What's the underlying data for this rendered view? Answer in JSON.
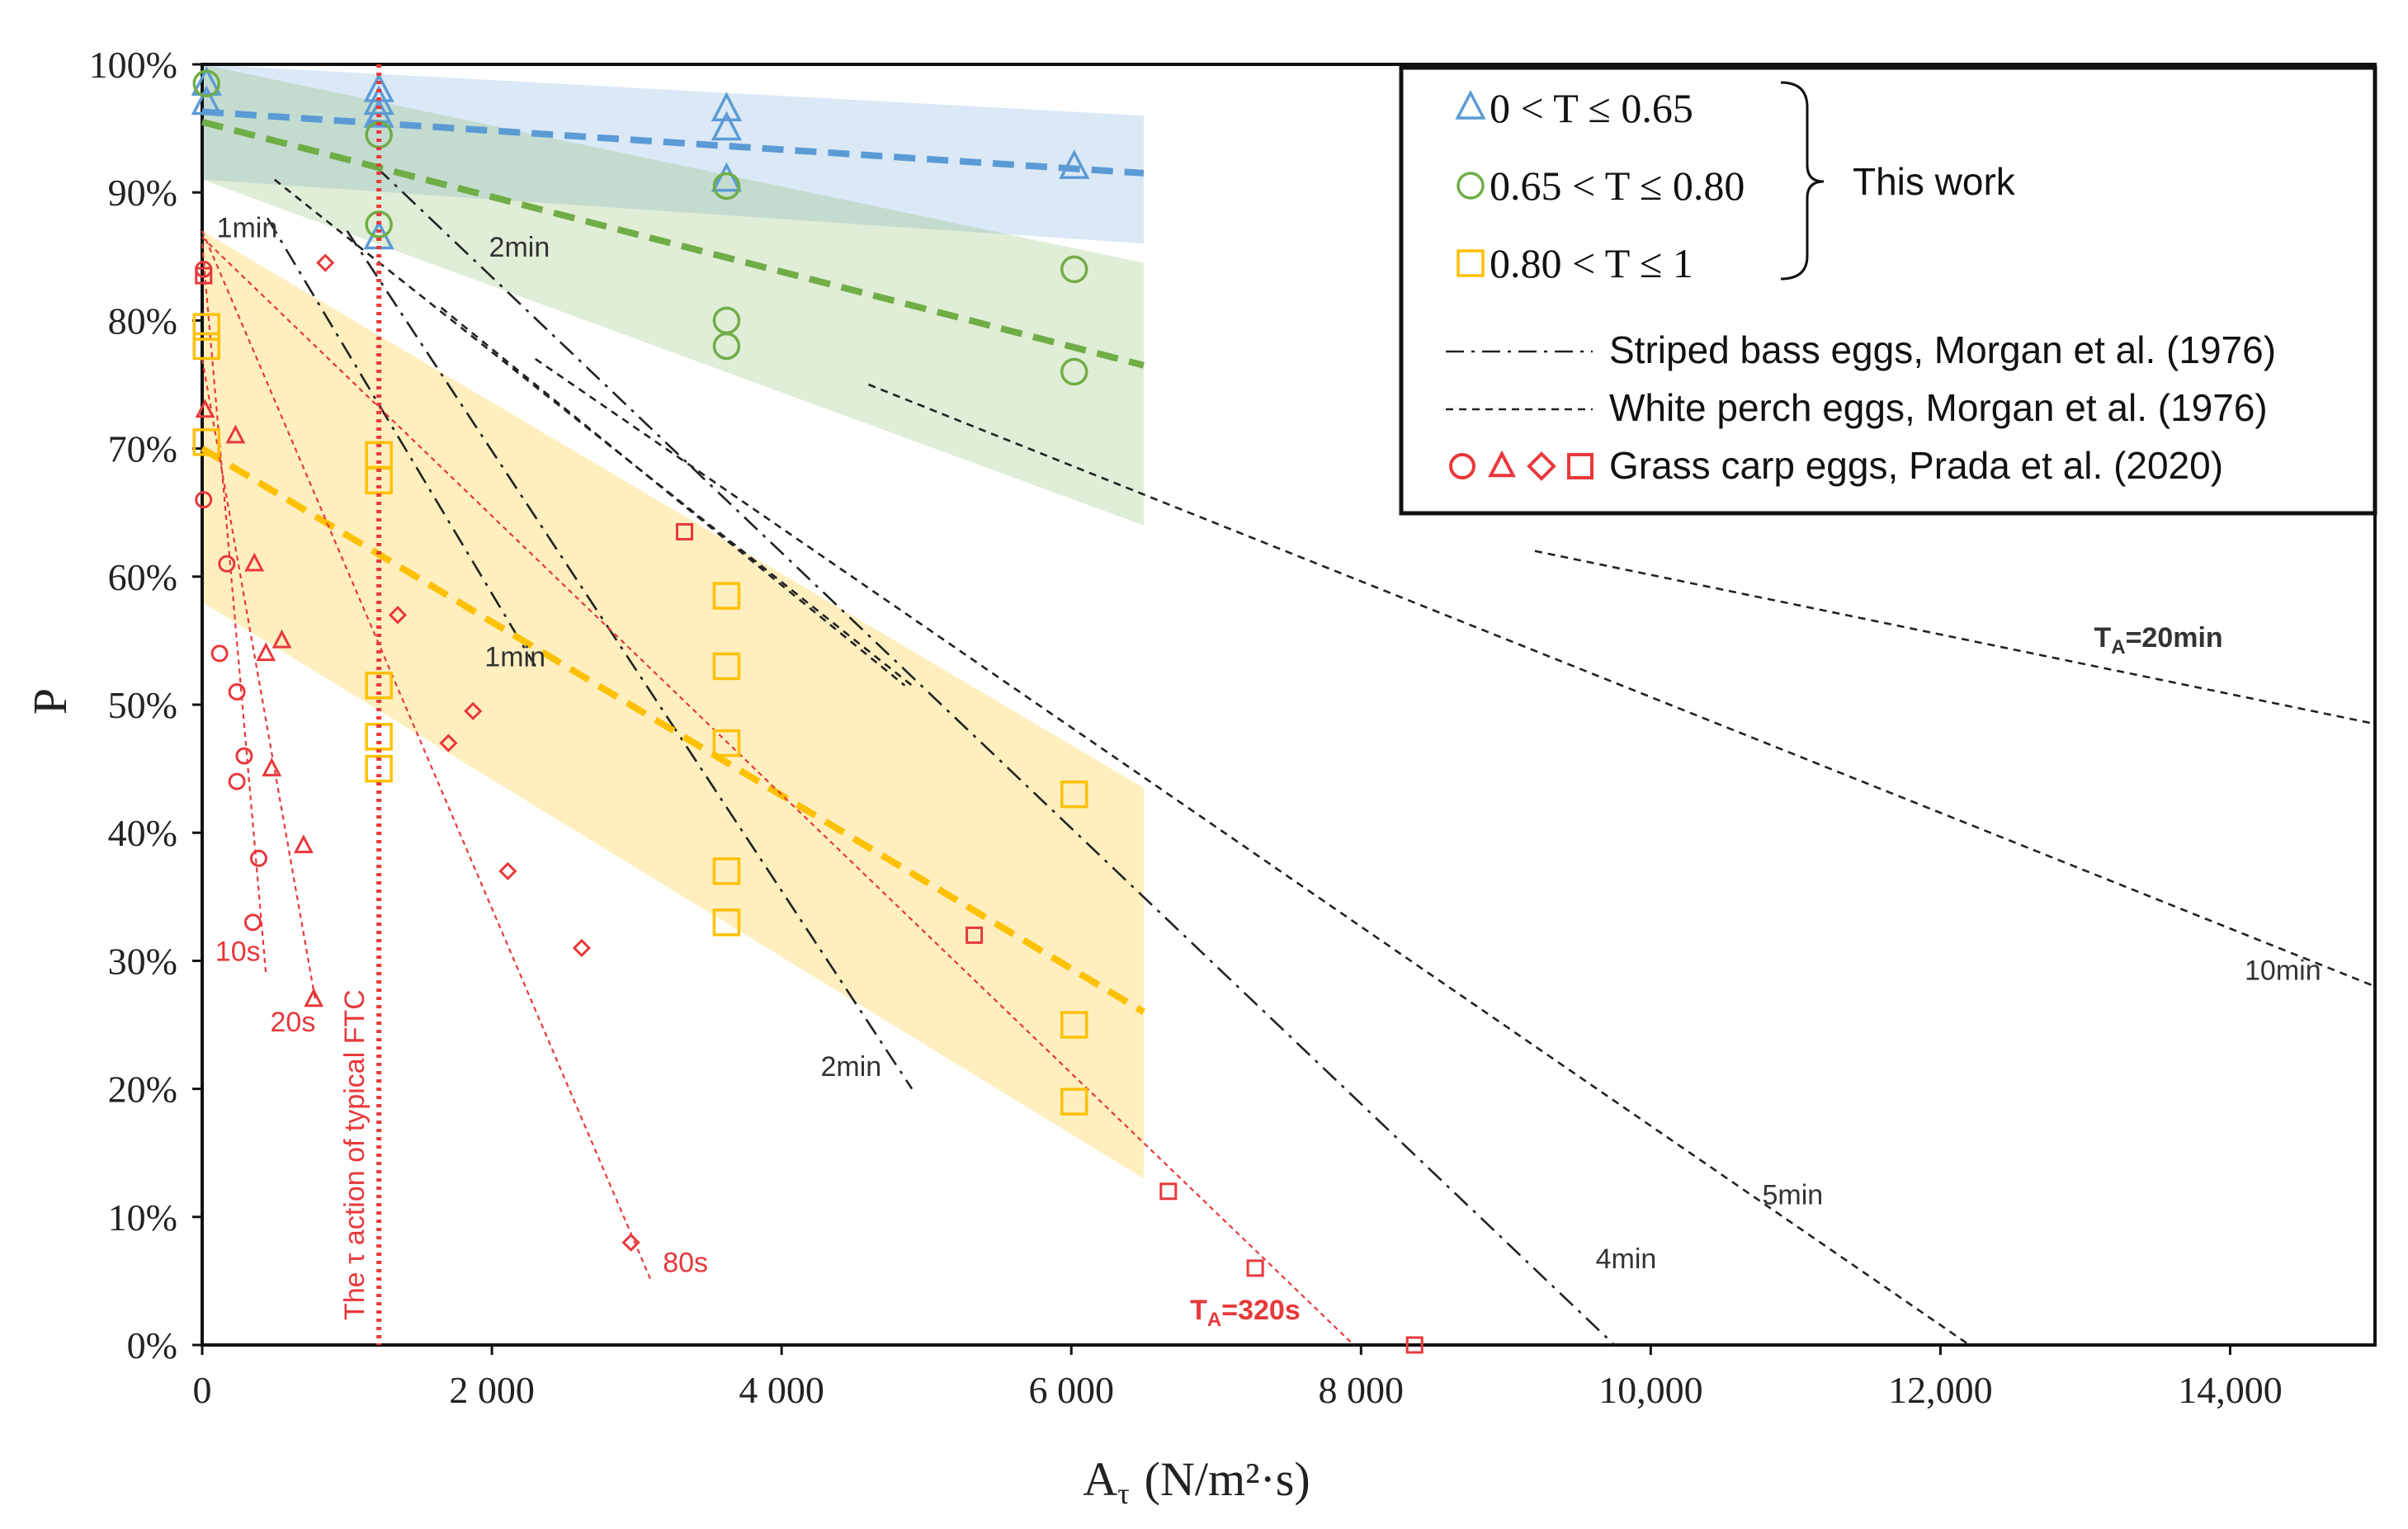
{
  "chart_data": {
    "type": "scatter",
    "title": "",
    "xlabel": "A",
    "xlabel_sub": "τ",
    "xlabel_units": "(N/m²·s)",
    "ylabel": "P",
    "xlim": [
      0,
      15000
    ],
    "ylim": [
      0,
      100
    ],
    "x_ticks": [
      {
        "value": 0,
        "label": "0"
      },
      {
        "value": 2000,
        "label": "2 000"
      },
      {
        "value": 4000,
        "label": "4 000"
      },
      {
        "value": 6000,
        "label": "6 000"
      },
      {
        "value": 8000,
        "label": "8 000"
      },
      {
        "value": 10000,
        "label": "10,000"
      },
      {
        "value": 12000,
        "label": "12,000"
      },
      {
        "value": 14000,
        "label": "14,000"
      }
    ],
    "y_ticks": [
      {
        "value": 0,
        "label": "0%"
      },
      {
        "value": 10,
        "label": "10%"
      },
      {
        "value": 20,
        "label": "20%"
      },
      {
        "value": 30,
        "label": "30%"
      },
      {
        "value": 40,
        "label": "40%"
      },
      {
        "value": 50,
        "label": "50%"
      },
      {
        "value": 60,
        "label": "60%"
      },
      {
        "value": 70,
        "label": "70%"
      },
      {
        "value": 80,
        "label": "80%"
      },
      {
        "value": 90,
        "label": "90%"
      },
      {
        "value": 100,
        "label": "100%"
      }
    ],
    "colors": {
      "blue": "#5b9bd5",
      "green": "#70ad47",
      "yellow": "#ffc000",
      "red": "#e8383b",
      "black": "#222222"
    },
    "bands": [
      {
        "name": "band-blue",
        "color": "#5b9bd5",
        "opacity": 0.22,
        "upper": [
          [
            0,
            100
          ],
          [
            6500,
            96
          ]
        ],
        "lower": [
          [
            0,
            91
          ],
          [
            6500,
            86
          ]
        ]
      },
      {
        "name": "band-green",
        "color": "#70ad47",
        "opacity": 0.22,
        "upper": [
          [
            0,
            100
          ],
          [
            6500,
            84.5
          ]
        ],
        "lower": [
          [
            0,
            91
          ],
          [
            6500,
            64
          ]
        ]
      },
      {
        "name": "band-yellow",
        "color": "#ffc000",
        "opacity": 0.25,
        "upper": [
          [
            0,
            87
          ],
          [
            6500,
            43.5
          ]
        ],
        "lower": [
          [
            0,
            58
          ],
          [
            6500,
            13
          ]
        ]
      }
    ],
    "series": [
      {
        "name": "0 < T ≤ 0.65",
        "marker": "triangle",
        "color": "#5b9bd5",
        "points": [
          [
            30,
            98.5
          ],
          [
            30,
            97
          ],
          [
            1220,
            98
          ],
          [
            1220,
            97
          ],
          [
            1220,
            96
          ],
          [
            1220,
            86.5
          ],
          [
            3620,
            96.5
          ],
          [
            3620,
            95
          ],
          [
            3620,
            91
          ],
          [
            6020,
            92
          ]
        ],
        "fit": [
          [
            0,
            96.3
          ],
          [
            6500,
            91.5
          ]
        ]
      },
      {
        "name": "0.65 < T ≤ 0.80",
        "marker": "circle",
        "color": "#70ad47",
        "points": [
          [
            30,
            98.5
          ],
          [
            1220,
            94.5
          ],
          [
            1220,
            87.5
          ],
          [
            3620,
            90.5
          ],
          [
            3620,
            80
          ],
          [
            3620,
            78
          ],
          [
            6020,
            84
          ],
          [
            6020,
            76
          ]
        ],
        "fit": [
          [
            0,
            95.5
          ],
          [
            6500,
            76.5
          ]
        ]
      },
      {
        "name": "0.80 < T ≤ 1",
        "marker": "square",
        "color": "#ffc000",
        "points": [
          [
            30,
            79.5
          ],
          [
            30,
            78
          ],
          [
            30,
            70.5
          ],
          [
            1220,
            69.5
          ],
          [
            1220,
            67.5
          ],
          [
            1220,
            51.5
          ],
          [
            1220,
            47.5
          ],
          [
            1220,
            45
          ],
          [
            3620,
            58.5
          ],
          [
            3620,
            53
          ],
          [
            3620,
            47
          ],
          [
            3620,
            37
          ],
          [
            3620,
            33
          ],
          [
            6020,
            43
          ],
          [
            6020,
            25
          ],
          [
            6020,
            19
          ]
        ],
        "fit": [
          [
            0,
            70
          ],
          [
            6500,
            26
          ]
        ]
      }
    ],
    "red_series": [
      {
        "name": "10s",
        "marker": "circle",
        "points": [
          [
            10,
            84
          ],
          [
            10,
            66
          ],
          [
            120,
            54
          ],
          [
            170,
            61
          ],
          [
            240,
            51
          ],
          [
            240,
            44
          ],
          [
            290,
            46
          ],
          [
            390,
            38
          ],
          [
            350,
            33
          ]
        ],
        "line": [
          [
            0,
            86
          ],
          [
            440,
            29
          ]
        ]
      },
      {
        "name": "20s",
        "marker": "triangle",
        "points": [
          [
            20,
            73
          ],
          [
            230,
            71
          ],
          [
            360,
            61
          ],
          [
            440,
            54
          ],
          [
            550,
            55
          ],
          [
            480,
            45
          ],
          [
            700,
            39
          ],
          [
            770,
            27
          ]
        ],
        "line": [
          [
            0,
            77
          ],
          [
            780,
            27
          ]
        ]
      },
      {
        "name": "80s",
        "marker": "diamond",
        "points": [
          [
            850,
            84.5
          ],
          [
            1350,
            57
          ],
          [
            1870,
            49.5
          ],
          [
            1700,
            47
          ],
          [
            2110,
            37
          ],
          [
            2620,
            31
          ],
          [
            2960,
            8
          ]
        ],
        "line": [
          [
            0,
            87
          ],
          [
            3100,
            5
          ]
        ]
      },
      {
        "name": "320s",
        "marker": "square",
        "points": [
          [
            10,
            83.5
          ],
          [
            3330,
            63.5
          ],
          [
            5330,
            32
          ],
          [
            6670,
            12
          ],
          [
            7270,
            6
          ],
          [
            8370,
            0
          ]
        ],
        "line": [
          [
            0,
            86.5
          ],
          [
            7950,
            0
          ]
        ]
      }
    ],
    "reference_lines": [
      {
        "name": "striped-bass-1min",
        "style": "dashdot",
        "points": [
          [
            450,
            88
          ],
          [
            2300,
            53
          ]
        ]
      },
      {
        "name": "striped-bass-2min",
        "style": "dashdot",
        "points": [
          [
            1000,
            87
          ],
          [
            4900,
            20
          ]
        ]
      },
      {
        "name": "striped-bass-4min",
        "style": "dashdot",
        "points": [
          [
            1200,
            92
          ],
          [
            9750,
            0
          ]
        ]
      },
      {
        "name": "white-perch-1min",
        "style": "dashed",
        "points": [
          [
            500,
            91
          ],
          [
            4900,
            51.5
          ]
        ]
      },
      {
        "name": "white-perch-2min",
        "style": "dashed",
        "points": [
          [
            1650,
            81
          ],
          [
            4850,
            51.5
          ]
        ]
      },
      {
        "name": "white-perch-5min",
        "style": "dashed",
        "points": [
          [
            2300,
            77
          ],
          [
            12200,
            0
          ]
        ]
      },
      {
        "name": "white-perch-10min",
        "style": "dashed",
        "points": [
          [
            4600,
            75
          ],
          [
            15000,
            28
          ]
        ]
      },
      {
        "name": "white-perch-20min",
        "style": "dashed",
        "points": [
          [
            9200,
            62
          ],
          [
            15000,
            48.5
          ]
        ]
      }
    ],
    "ftc_line": {
      "x": 1220,
      "label": "The τ action of typical FTC"
    },
    "annotations": [
      {
        "text": "1min",
        "x": 100,
        "y": 86.5,
        "color": "black"
      },
      {
        "text": "2min",
        "x": 1980,
        "y": 85,
        "color": "black"
      },
      {
        "text": "1min",
        "x": 1950,
        "y": 53,
        "color": "black"
      },
      {
        "text": "2min",
        "x": 4270,
        "y": 21,
        "color": "black"
      },
      {
        "text": "4min",
        "x": 9620,
        "y": 6,
        "color": "black"
      },
      {
        "text": "5min",
        "x": 10770,
        "y": 11,
        "color": "black"
      },
      {
        "text": "10min",
        "x": 14100,
        "y": 28.5,
        "color": "black"
      },
      {
        "text": "10s",
        "x": 90,
        "y": 30,
        "color": "red"
      },
      {
        "text": "20s",
        "x": 470,
        "y": 24.5,
        "color": "red"
      },
      {
        "text": "80s",
        "x": 3180,
        "y": 5.7,
        "color": "red"
      }
    ],
    "ta_labels": [
      {
        "sub": "A",
        "value": "=20min",
        "x": 13060,
        "y": 54.5,
        "color": "black"
      },
      {
        "sub": "A",
        "value": "=320s",
        "x": 6820,
        "y": 2,
        "color": "red"
      }
    ],
    "legend": {
      "position": "top-right",
      "entries": [
        {
          "marker": "triangle",
          "color": "#5b9bd5",
          "label": "0 < T ≤ 0.65"
        },
        {
          "marker": "circle",
          "color": "#70ad47",
          "label": "0.65 < T ≤ 0.80"
        },
        {
          "marker": "square",
          "color": "#ffc000",
          "label": "0.80 < T ≤ 1"
        },
        {
          "marker": "dashdot",
          "color": "#222222",
          "label": "Striped bass eggs, Morgan et al. (1976)"
        },
        {
          "marker": "dashed",
          "color": "#222222",
          "label": "White perch eggs, Morgan et al. (1976)"
        },
        {
          "marker": "red-symbols",
          "color": "#e8383b",
          "label": "Grass carp eggs, Prada et al. (2020)"
        }
      ],
      "brace_label": "This work"
    }
  }
}
